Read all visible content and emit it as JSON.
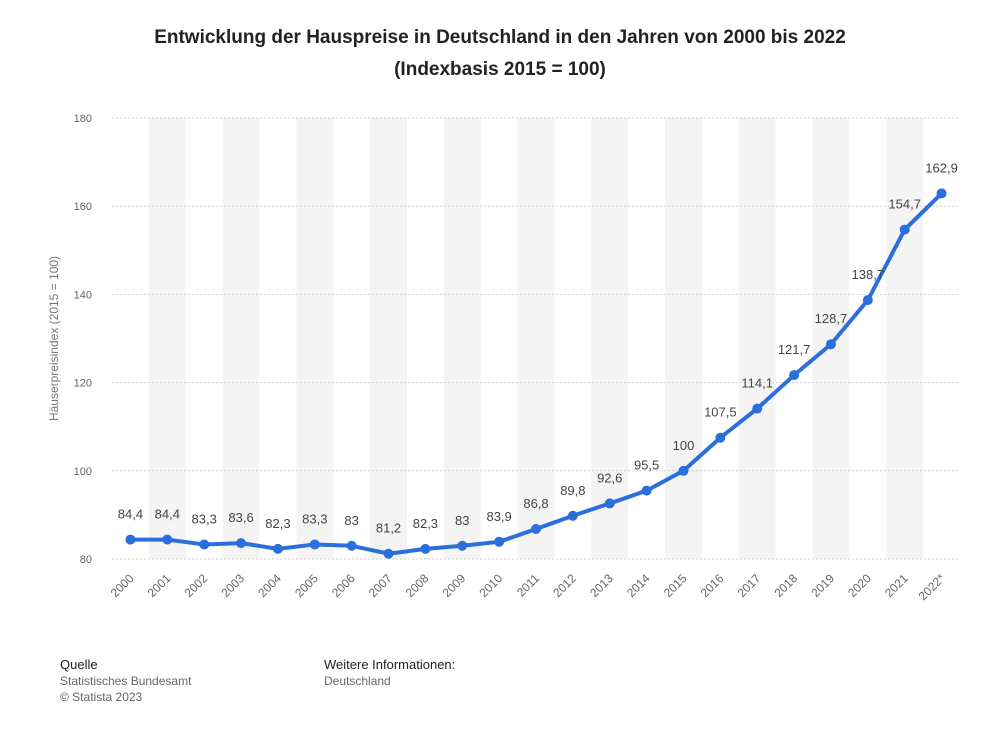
{
  "title": {
    "line1": "Entwicklung der Hauspreise in Deutschland in den Jahren von 2000 bis 2022",
    "line2": "(Indexbasis 2015 = 100)"
  },
  "chart_data": {
    "type": "line",
    "title": "Entwicklung der Hauspreise in Deutschland in den Jahren von 2000 bis 2022 (Indexbasis 2015 = 100)",
    "xlabel": "",
    "ylabel": "Häuserpreisindex (2015 = 100)",
    "ylim": [
      80,
      180
    ],
    "yticks": [
      80,
      100,
      120,
      140,
      160,
      180
    ],
    "categories": [
      "2000",
      "2001",
      "2002",
      "2003",
      "2004",
      "2005",
      "2006",
      "2007",
      "2008",
      "2009",
      "2010",
      "2011",
      "2012",
      "2013",
      "2014",
      "2015",
      "2016",
      "2017",
      "2018",
      "2019",
      "2020",
      "2021",
      "2022*"
    ],
    "series": [
      {
        "name": "Häuserpreisindex",
        "values": [
          84.4,
          84.4,
          83.3,
          83.6,
          82.3,
          83.3,
          83,
          81.2,
          82.3,
          83,
          83.9,
          86.8,
          89.8,
          92.6,
          95.5,
          100,
          107.5,
          114.1,
          121.7,
          128.7,
          138.7,
          154.7,
          162.9
        ],
        "labels": [
          "84,4",
          "84,4",
          "83,3",
          "83,6",
          "82,3",
          "83,3",
          "83",
          "81,2",
          "82,3",
          "83",
          "83,9",
          "86,8",
          "89,8",
          "92,6",
          "95,5",
          "100",
          "107,5",
          "114,1",
          "121,7",
          "128,7",
          "138,7",
          "154,7",
          "162,9"
        ],
        "color": "#2a6fdb"
      }
    ],
    "grid": true,
    "legend": "none"
  },
  "colors": {
    "line": "#2a6fdb",
    "band": "#f4f4f4",
    "grid": "#cfcfcf",
    "axis_text": "#666666",
    "label_text": "#444444"
  },
  "footer": {
    "source_heading": "Quelle",
    "source_line1": "Statistisches Bundesamt",
    "source_line2": "© Statista 2023",
    "info_heading": "Weitere Informationen:",
    "info_line1": "Deutschland"
  }
}
